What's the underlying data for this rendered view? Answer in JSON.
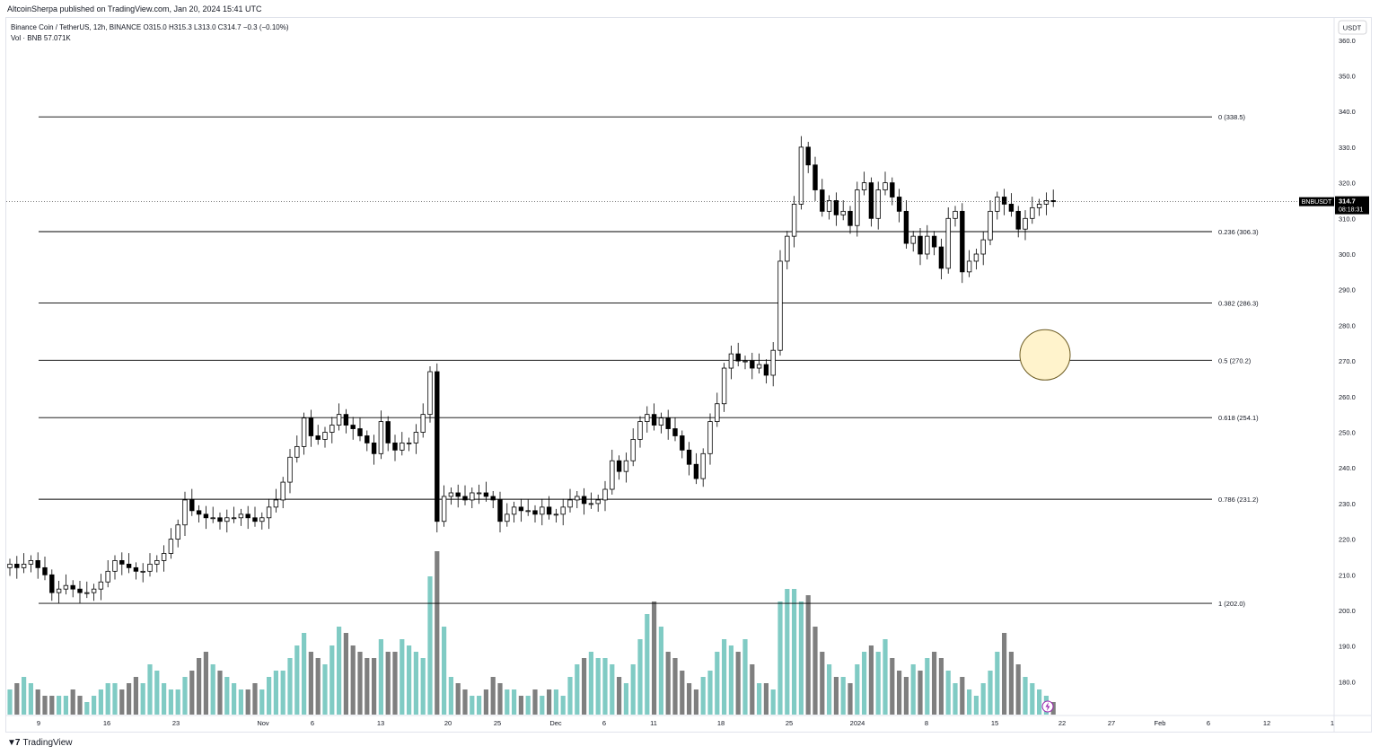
{
  "header": {
    "publisher": "AltcoinSherpa published on TradingView.com, Jan 20, 2024 15:41 UTC"
  },
  "legend": {
    "symbol_line": "Binance Coin / TetherUS, 12h, BINANCE",
    "o_label": "O",
    "o_value": "315.0",
    "h_label": "H",
    "h_value": "315.3",
    "l_label": "L",
    "l_value": "313.0",
    "c_label": "C",
    "c_value": "314.7",
    "change": "−0.3 (−0.10%)",
    "vol_label": "Vol · BNB",
    "vol_value": "57.071K"
  },
  "price_axis": {
    "currency": "USDT",
    "symbol_tag": "BNBUSDT",
    "last_price": "314.7",
    "countdown": "08:18:31"
  },
  "footer": {
    "brand": "TradingView"
  },
  "colors": {
    "up": "#ffffff",
    "down": "#000000",
    "vol_up": "#80cbc4",
    "vol_down": "#7f7f7f",
    "circle_fill": "#fff3cc",
    "circle_stroke": "#6b5a20"
  },
  "chart_data": {
    "type": "candlestick",
    "symbol": "BNBUSDT",
    "timeframe": "12h",
    "ylim": [
      170,
      365
    ],
    "y_ticks": [
      180,
      190,
      200,
      210,
      220,
      230,
      240,
      250,
      260,
      270,
      280,
      290,
      300,
      310,
      320,
      330,
      340,
      350,
      360
    ],
    "x_ticks": [
      "9",
      "16",
      "23",
      "Nov",
      "6",
      "13",
      "20",
      "25",
      "Dec",
      "6",
      "11",
      "18",
      "25",
      "2024",
      "8",
      "15",
      "22",
      "27",
      "Feb",
      "6",
      "12",
      "1"
    ],
    "fib_levels": [
      {
        "label": "0 (338.5)",
        "value": 338.5
      },
      {
        "label": "0.236 (306.3)",
        "value": 306.3
      },
      {
        "label": "0.382 (286.3)",
        "value": 286.3
      },
      {
        "label": "0.5 (270.2)",
        "value": 270.2
      },
      {
        "label": "0.618 (254.1)",
        "value": 254.1
      },
      {
        "label": "0.786 (231.2)",
        "value": 231.2
      },
      {
        "label": "1 (202.0)",
        "value": 202.0
      }
    ],
    "highlight_value": 270.2,
    "last_value": 314.7,
    "close": [
      213,
      212,
      213,
      214,
      212,
      210,
      205,
      206,
      207,
      206,
      205,
      205,
      206,
      208,
      211,
      214,
      213,
      212,
      211,
      211,
      213,
      214,
      216,
      220,
      224,
      231,
      228,
      227,
      226,
      226,
      225,
      226,
      226,
      227,
      226,
      225,
      226,
      229,
      231,
      236,
      243,
      246,
      254,
      249,
      248,
      250,
      252,
      255,
      252,
      251,
      249,
      247,
      244,
      253,
      247,
      245,
      247,
      247,
      250,
      255,
      267,
      225,
      232,
      233,
      232,
      231,
      233,
      233,
      232,
      231,
      225,
      227,
      229,
      228,
      228,
      227,
      229,
      227,
      227,
      229,
      231,
      232,
      230,
      230,
      231,
      234,
      242,
      239,
      242,
      248,
      253,
      255,
      252,
      254,
      251,
      249,
      245,
      241,
      237,
      244,
      253,
      258,
      268,
      272,
      270,
      270,
      268,
      269,
      266,
      273,
      298,
      305,
      314,
      330,
      325,
      318,
      312,
      315,
      311,
      312,
      308,
      318,
      320,
      310,
      318,
      320,
      316,
      312,
      303,
      305,
      300,
      305,
      302,
      296,
      310,
      312,
      295,
      298,
      300,
      304,
      312,
      316,
      314,
      312,
      307,
      310,
      313,
      314,
      315,
      314.7
    ],
    "volume": [
      4,
      5,
      6,
      5,
      4,
      3,
      3,
      3,
      3,
      4,
      3,
      2,
      3,
      4,
      5,
      5,
      4,
      5,
      6,
      5,
      8,
      7,
      5,
      4,
      4,
      6,
      7,
      9,
      10,
      8,
      7,
      6,
      5,
      4,
      4,
      5,
      4,
      6,
      7,
      7,
      9,
      11,
      13,
      10,
      9,
      8,
      11,
      14,
      13,
      11,
      10,
      9,
      9,
      12,
      10,
      10,
      12,
      11,
      10,
      9,
      22,
      26,
      14,
      6,
      5,
      4,
      3,
      3,
      4,
      6,
      5,
      4,
      4,
      3,
      3,
      4,
      3,
      4,
      4,
      3,
      6,
      8,
      9,
      10,
      9,
      9,
      8,
      6,
      5,
      8,
      12,
      16,
      18,
      14,
      10,
      9,
      7,
      5,
      4,
      6,
      7,
      10,
      12,
      11,
      10,
      12,
      8,
      5,
      5,
      4,
      18,
      20,
      20,
      18,
      19,
      14,
      10,
      8,
      6,
      6,
      5,
      8,
      10,
      11,
      10,
      12,
      9,
      7,
      6,
      8,
      7,
      9,
      10,
      9,
      7,
      5,
      6,
      4,
      3,
      5,
      7,
      10,
      13,
      10,
      8,
      6,
      5,
      4,
      3,
      2
    ]
  }
}
